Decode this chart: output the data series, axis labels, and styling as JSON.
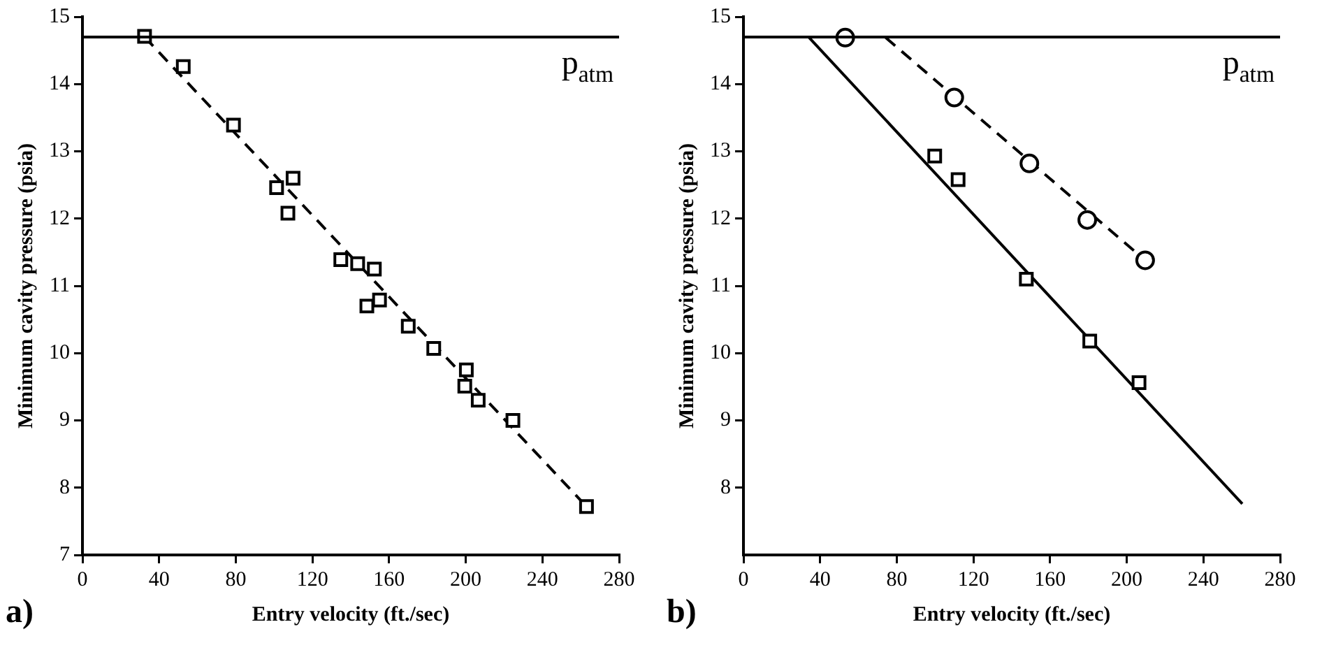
{
  "chart_data": [
    {
      "type": "scatter",
      "xlabel": "Entry velocity (ft./sec)",
      "ylabel": "Minimum cavity pressure (psia)",
      "annotations": [
        "a)"
      ],
      "xlim": [
        0,
        280
      ],
      "xticks": [
        0,
        40,
        80,
        120,
        160,
        200,
        240,
        280
      ],
      "ylim": [
        7,
        15
      ],
      "yticks": [
        7,
        8,
        9,
        10,
        11,
        12,
        13,
        14,
        15
      ],
      "legend": false,
      "ref_lines": [
        {
          "axis": "y",
          "value": 14.7,
          "label": "p$_{atm}$",
          "color": "#000000",
          "line_style": "solid"
        }
      ],
      "series": [
        {
          "type": "scatter",
          "marker": "square",
          "color": "#000000",
          "x": [
            32.4,
            52.6,
            78.8,
            101.3,
            109.9,
            107.2,
            134.8,
            143.6,
            152.3,
            148.4,
            155,
            170,
            183.3,
            200.3,
            199.5,
            206.5,
            224.6,
            263
          ],
          "values": [
            14.71,
            14.26,
            13.39,
            12.46,
            12.6,
            12.08,
            11.39,
            11.33,
            11.25,
            10.7,
            10.79,
            10.4,
            10.07,
            9.75,
            9.51,
            9.3,
            9.0,
            7.72
          ]
        },
        {
          "type": "line",
          "marker": "none",
          "line_style": "dashed",
          "color": "#000000",
          "x": [
            32.4,
            263
          ],
          "values": [
            14.7,
            7.72
          ]
        }
      ]
    },
    {
      "type": "scatter",
      "xlabel": "Entry velocity (ft./sec)",
      "ylabel": "Minimum cavity pressure (psia)",
      "annotations": [
        "b)"
      ],
      "xlim": [
        0,
        280
      ],
      "xticks": [
        0,
        40,
        80,
        120,
        160,
        200,
        240,
        280
      ],
      "ylim": [
        7,
        15
      ],
      "yticks": [
        8,
        9,
        10,
        11,
        12,
        13,
        14,
        15
      ],
      "legend": false,
      "ref_lines": [
        {
          "axis": "y",
          "value": 14.7,
          "label": "p$_{atm}$",
          "color": "#000000",
          "line_style": "solid"
        }
      ],
      "series": [
        {
          "type": "scatter",
          "marker": "circle",
          "color": "#000000",
          "x": [
            53.1,
            110,
            149.2,
            179.4,
            209.6
          ],
          "values": [
            14.69,
            13.8,
            12.82,
            11.98,
            11.38
          ]
        },
        {
          "type": "line",
          "marker": "none",
          "line_style": "dashed",
          "color": "#000000",
          "x": [
            74.2,
            209.6
          ],
          "values": [
            14.69,
            11.38
          ]
        },
        {
          "type": "scatter",
          "marker": "square",
          "color": "#000000",
          "x": [
            99.8,
            112,
            147.6,
            180.7,
            206.4
          ],
          "values": [
            12.93,
            12.58,
            11.1,
            10.18,
            9.56
          ]
        },
        {
          "type": "line",
          "marker": "none",
          "line_style": "solid",
          "color": "#000000",
          "x": [
            34.3,
            260.3
          ],
          "values": [
            14.69,
            7.76
          ]
        }
      ]
    }
  ]
}
